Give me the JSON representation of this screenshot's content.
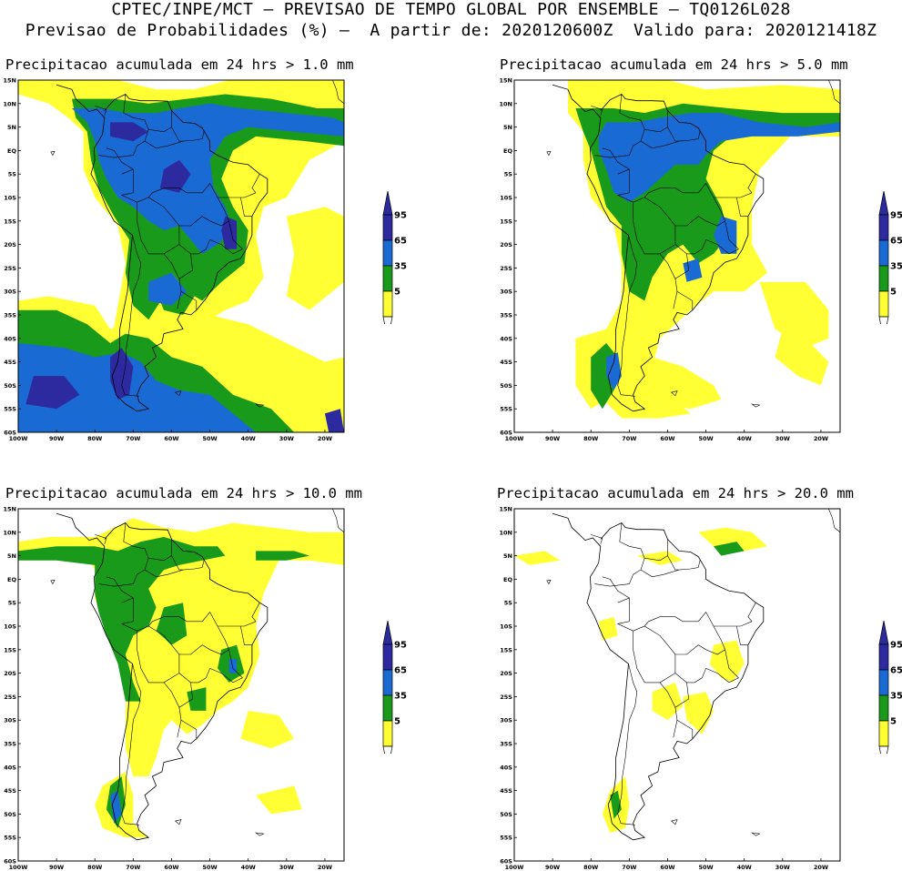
{
  "header": {
    "line1": "CPTEC/INPE/MCT — PREVISAO DE TEMPO GLOBAL POR ENSEMBLE — TQ0126L028",
    "line2": "Previsao de Probabilidades (%) —  A partir de: 2020120600Z  Valido para: 2020121418Z"
  },
  "colors": {
    "c5": "#ffff33",
    "c35": "#1a9a1a",
    "c65": "#1a6ad4",
    "c95": "#2d2aa0",
    "land_line": "#000000"
  },
  "axes": {
    "lat_labels": [
      "15N",
      "10N",
      "5N",
      "EQ",
      "5S",
      "10S",
      "15S",
      "20S",
      "25S",
      "30S",
      "35S",
      "40S",
      "45S",
      "50S",
      "55S",
      "60S"
    ],
    "lon_labels": [
      "100W",
      "90W",
      "80W",
      "70W",
      "60W",
      "50W",
      "40W",
      "30W",
      "20W"
    ]
  },
  "legend": {
    "labels": [
      "95",
      "65",
      "35",
      "5"
    ]
  },
  "panels": [
    {
      "title": "Precipitacao acumulada em 24 hrs > 1.0 mm"
    },
    {
      "title": "Precipitacao acumulada em 24 hrs > 5.0 mm"
    },
    {
      "title": "Precipitacao acumulada em 24 hrs > 10.0 mm"
    },
    {
      "title": "Precipitacao acumulada em 24 hrs > 20.0 mm"
    }
  ]
}
